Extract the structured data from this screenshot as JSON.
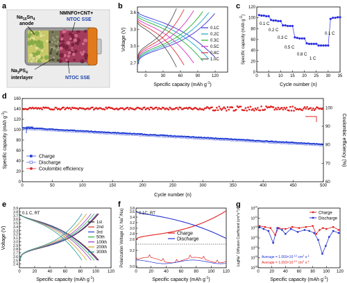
{
  "panel_letters": [
    "a",
    "b",
    "c",
    "d",
    "e",
    "f",
    "g"
  ],
  "panel_a": {
    "label_cathode": "NMNFO+CNT+",
    "label_cathode_sse": "NTOC SSE",
    "label_anode_1": "Na",
    "label_anode_1_sub": "15",
    "label_anode_2": "Sn",
    "label_anode_2_sub": "4",
    "label_anode_3": "anode",
    "label_interlayer_1": "Na",
    "label_interlayer_1_sub": "3",
    "label_interlayer_2": "PS",
    "label_interlayer_2_sub": "4",
    "label_interlayer_3": "interlayer",
    "label_sse": "NTOC SSE",
    "colors": {
      "blue_text": "#1a3fa8",
      "case": "#8a8a8a",
      "cap": "#e07a1c",
      "anode": "#c9c96a",
      "interlayer": "#3c3c3c",
      "sse": "#b64a6a"
    }
  },
  "chart_data": [
    {
      "panel": "b",
      "type": "line",
      "xlabel": "Specific capacity (mAh g",
      "xlabel_sup": "-1",
      "ylabel": "Voltage (V)",
      "xlim": [
        0,
        120
      ],
      "ylim": [
        2.5,
        3.8
      ],
      "xticks": [
        "0",
        "30",
        "60",
        "90",
        "120"
      ],
      "yticks": [
        "2.7",
        "3.0",
        "3.3",
        "3.6"
      ],
      "series": [
        {
          "name": "0.1C",
          "color": "#3a2fd6",
          "cap": 103
        },
        {
          "name": "0.2C",
          "color": "#1aa0c8",
          "cap": 95
        },
        {
          "name": "0.3C",
          "color": "#1db02a",
          "cap": 87
        },
        {
          "name": "0.5C",
          "color": "#d636c8",
          "cap": 75
        },
        {
          "name": "0.8C",
          "color": "#e0303a",
          "cap": 62
        },
        {
          "name": "1.0C",
          "color": "#555555",
          "cap": 52
        }
      ]
    },
    {
      "panel": "c",
      "type": "scatter",
      "xlabel": "Cycle number (n)",
      "ylabel": "Specific capacity (mAh g",
      "ylabel_sup": "-1",
      "xlim": [
        0,
        35
      ],
      "ylim": [
        0,
        120
      ],
      "xticks": [
        "0",
        "5",
        "10",
        "15",
        "20",
        "25",
        "30",
        "35"
      ],
      "yticks": [
        "0",
        "20",
        "40",
        "60",
        "80",
        "100",
        "120"
      ],
      "annotations": [
        "0.1 C",
        "0.2 C",
        "0.3 C",
        "0.5 C",
        "0.8 C",
        "1 C",
        "0.1 C"
      ],
      "x": [
        1,
        2,
        3,
        4,
        5,
        6,
        7,
        8,
        9,
        10,
        11,
        12,
        13,
        14,
        15,
        16,
        17,
        18,
        19,
        20,
        21,
        22,
        23,
        24,
        25,
        26,
        27,
        28,
        29,
        30,
        31,
        32,
        33,
        34,
        35
      ],
      "values": [
        105,
        104,
        104,
        103,
        103,
        96,
        95,
        95,
        94,
        94,
        86,
        86,
        85,
        85,
        85,
        64,
        63,
        62,
        62,
        62,
        53,
        52,
        52,
        52,
        52,
        49,
        49,
        49,
        49,
        49,
        98,
        100,
        100,
        101,
        101
      ],
      "color": "#2a2fe0"
    },
    {
      "panel": "d",
      "type": "scatter",
      "xlabel": "Cycle number (n)",
      "ylabel_left": "Specific capacity (mAh g",
      "ylabel_left_sup": "-1",
      "ylabel_right": "Coulombic efficiency (%)",
      "xlim": [
        0,
        500
      ],
      "ylim_left": [
        0,
        160
      ],
      "ylim_right": [
        60,
        105
      ],
      "xticks": [
        "0",
        "50",
        "100",
        "150",
        "200",
        "250",
        "300",
        "350",
        "400",
        "450",
        "500"
      ],
      "yticks_left": [
        "0",
        "20",
        "40",
        "60",
        "80",
        "100",
        "120",
        "140",
        "160"
      ],
      "yticks_right": [
        "60",
        "70",
        "80",
        "90",
        "100"
      ],
      "series": [
        {
          "name": "Charge",
          "color": "#1f3bd4",
          "start": 104,
          "end": 72
        },
        {
          "name": "Discharge",
          "color": "#5a6ae0",
          "start": 102,
          "end": 70
        },
        {
          "name": "Coulombic efficiency",
          "color": "#e02020",
          "mean": 99.6,
          "axis": "right"
        }
      ]
    },
    {
      "panel": "e",
      "type": "line",
      "annotation": "0.1 C, RT",
      "xlabel": "Specific capacity (mAh g",
      "xlabel_sup": "-1",
      "ylabel": "Voltage (V)",
      "xlim": [
        0,
        120
      ],
      "ylim": [
        2.3,
        3.9
      ],
      "xticks": [
        "0",
        "20",
        "40",
        "60",
        "80",
        "100",
        "120"
      ],
      "yticks": [
        "2.4",
        "2.7",
        "3.0",
        "3.3",
        "3.6",
        "3.9"
      ],
      "yticks_full": [
        "2.4",
        "2.5",
        "2.6",
        "2.7",
        "2.8",
        "2.9",
        "3.0",
        "3.1",
        "3.2",
        "3.3",
        "3.4",
        "3.5",
        "3.6",
        "3.7",
        "3.8",
        "3.9"
      ],
      "series": [
        {
          "name": "1st",
          "color": "#222222",
          "cap": 104
        },
        {
          "name": "2nd",
          "color": "#d23030",
          "cap": 103
        },
        {
          "name": "3rd",
          "color": "#2a3ad0",
          "cap": 102
        },
        {
          "name": "50th",
          "color": "#20b040",
          "cap": 98
        },
        {
          "name": "100th",
          "color": "#9a30c0",
          "cap": 94
        },
        {
          "name": "200th",
          "color": "#d0a020",
          "cap": 88
        },
        {
          "name": "300th",
          "color": "#1c9aa0",
          "cap": 82
        }
      ]
    },
    {
      "panel": "f",
      "type": "line",
      "annotation": "0.1C, RT",
      "xlabel": "Specific capacity (mAh g",
      "xlabel_sup": "-1",
      "ylabel": "Polarization  Voltage (V, Na",
      "ylabel_sup": "+",
      "ylabel_end": "/Na)",
      "xlim": [
        0,
        120
      ],
      "xticks": [
        "0",
        "20",
        "40",
        "60",
        "80",
        "100",
        "120"
      ],
      "yticks": [
        "0.0",
        "0.2",
        "2.6",
        "2.8",
        "3.0",
        "3.2",
        "3.4",
        "3.6",
        "3.8"
      ],
      "series": [
        {
          "name": "Charge",
          "color": "#e02020"
        },
        {
          "name": "Discharge",
          "color": "#2030d0"
        }
      ]
    },
    {
      "panel": "g",
      "type": "line",
      "xlabel": "Specific capacity (mAh g",
      "xlabel_sup": "-1",
      "ylabel": "LogNa",
      "ylabel_sup": "+",
      "ylabel_end": " Diffusion Coefficient (cm",
      "ylabel_sup2": "2",
      "ylabel_end2": "s",
      "ylabel_sup3": "-1",
      "xlim": [
        0,
        120
      ],
      "xticks": [
        "0",
        "20",
        "40",
        "60",
        "80",
        "100",
        "120"
      ],
      "yticks": [
        "10",
        "10",
        "10",
        "10",
        "10",
        "10",
        "10"
      ],
      "ytick_exps": [
        "-16",
        "-15",
        "-14",
        "-13",
        "-12",
        "-11",
        "-10"
      ],
      "series": [
        {
          "name": "Charge",
          "color": "#e02020"
        },
        {
          "name": "Discharge",
          "color": "#2030d0"
        }
      ],
      "avg_text_1": "Average = 1.059×10",
      "avg_text_1_exp": "-12",
      "avg_text_1_unit": " cm",
      "avg_text_1_unit_sup": "2",
      "avg_text_1_tail": " s",
      "avg_text_1_tail_sup": "-1",
      "avg_text_2": "Average = 1.093×10",
      "avg_text_2_exp": "-12",
      "avg_text_2_unit": " cm",
      "avg_text_2_unit_sup": "2",
      "avg_text_2_tail": " s",
      "avg_text_2_tail_sup": "-1"
    }
  ]
}
